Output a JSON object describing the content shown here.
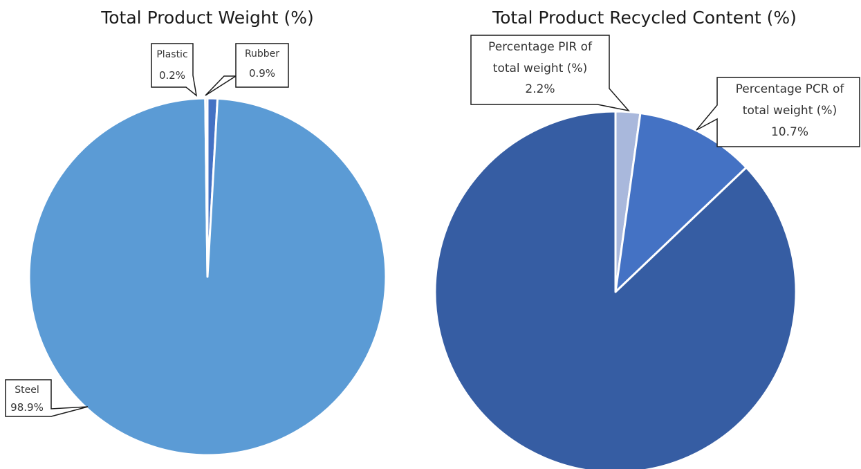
{
  "chart_data": [
    {
      "type": "pie",
      "title": "Total Product Weight (%)",
      "slices": [
        {
          "label": "Rubber",
          "value": 0.9,
          "value_label": "0.9%",
          "color": "#4472C4"
        },
        {
          "label": "Steel",
          "value": 98.9,
          "value_label": "98.9%",
          "color": "#5B9BD5"
        },
        {
          "label": "Plastic",
          "value": 0.2,
          "value_label": "0.2%",
          "color": "#ADB9CA"
        }
      ]
    },
    {
      "type": "pie",
      "title": "Total Product Recycled Content (%)",
      "slices": [
        {
          "label": "Percentage PIR of total weight (%)",
          "label_lines": [
            "Percentage PIR of",
            "total weight (%)"
          ],
          "value": 2.2,
          "value_label": "2.2%",
          "color": "#A9B8DC"
        },
        {
          "label": "Percentage PCR of total weight (%)",
          "label_lines": [
            "Percentage PCR of",
            "total weight (%)"
          ],
          "value": 10.7,
          "value_label": "10.7%",
          "color": "#4472C4"
        },
        {
          "label": "",
          "value": 87.1,
          "value_label": "",
          "color": "#365DA3"
        }
      ]
    }
  ]
}
